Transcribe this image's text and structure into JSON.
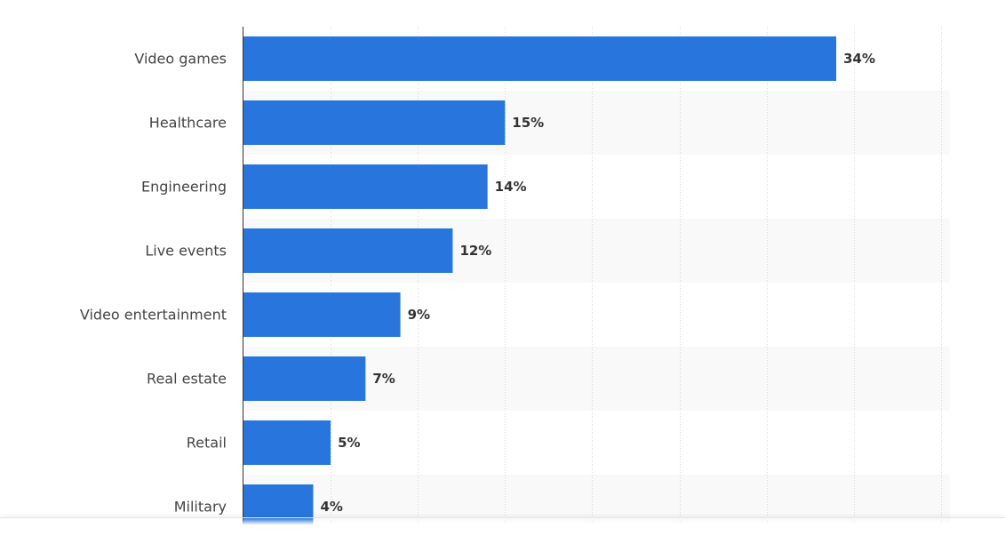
{
  "chart_data": {
    "type": "bar",
    "orientation": "horizontal",
    "categories": [
      "Video games",
      "Healthcare",
      "Engineering",
      "Live events",
      "Video entertainment",
      "Real estate",
      "Retail",
      "Military"
    ],
    "values": [
      34,
      15,
      14,
      12,
      9,
      7,
      5,
      4
    ],
    "value_labels": [
      "34%",
      "15%",
      "14%",
      "12%",
      "9%",
      "7%",
      "5%",
      "4%"
    ],
    "unit": "%",
    "xlim": [
      0,
      40
    ],
    "grid": true,
    "bar_color": "#2876dd"
  }
}
